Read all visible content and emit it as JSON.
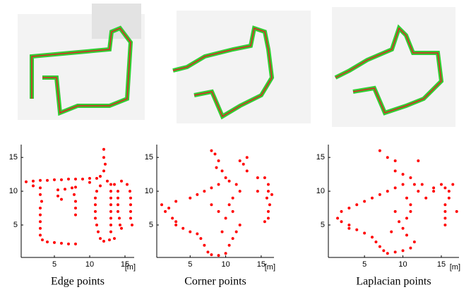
{
  "chart_data": [
    {
      "type": "scatter",
      "title": "Edge points",
      "xlabel": "[m]",
      "color": "#ff0000",
      "xlim": [
        0.3,
        16.3
      ],
      "ylim": [
        0.2,
        16.9
      ],
      "xticks": [
        5,
        10,
        15
      ],
      "yticks": [
        5,
        10,
        15
      ],
      "x": [
        12,
        12,
        12.2,
        12,
        11.5,
        11,
        10,
        9,
        8,
        7,
        6,
        5,
        4,
        3,
        2,
        1,
        2,
        3,
        3,
        3.2,
        3,
        3,
        3,
        3,
        3,
        3.3,
        4,
        5,
        6,
        7,
        8,
        5.5,
        6.5,
        7.5,
        8,
        7.8,
        8,
        8,
        8,
        5.5,
        6,
        11.5,
        11,
        10.8,
        10.8,
        10.8,
        10.8,
        11,
        11.2,
        11.5,
        12,
        12.8,
        13,
        13,
        13,
        13,
        13,
        13,
        13,
        13.5,
        14.5,
        15.3,
        15.7,
        15.8,
        15.8,
        15.8,
        15.8,
        16,
        14,
        14,
        14,
        14,
        14.2,
        14.3,
        14.5,
        13,
        12.5,
        13.5,
        10
      ],
      "values": [
        16.2,
        15,
        14,
        13,
        12.2,
        11.9,
        11.9,
        11.8,
        11.8,
        11.8,
        11.7,
        11.7,
        11.6,
        11.6,
        11.5,
        11.4,
        10.8,
        10.5,
        9.5,
        8.5,
        7.5,
        6.5,
        5.5,
        4.5,
        3.5,
        2.8,
        2.5,
        2.4,
        2.3,
        2.2,
        2.2,
        10.2,
        10.3,
        10.5,
        10.6,
        9.5,
        8.5,
        7.5,
        6.5,
        9.3,
        8.8,
        10.8,
        10,
        9,
        8,
        7,
        6,
        5,
        4,
        3,
        2.6,
        2.8,
        4,
        5,
        6,
        7,
        8,
        9,
        10,
        11,
        11.5,
        11,
        10,
        9,
        8,
        7,
        6,
        5,
        10,
        9,
        8,
        7,
        6,
        5,
        4.5,
        11,
        11.5,
        3,
        11.3
      ]
    },
    {
      "type": "scatter",
      "title": "Corner points",
      "xlabel": "[m]",
      "color": "#ff0000",
      "xlim": [
        0.3,
        16.8
      ],
      "ylim": [
        0.2,
        16.9
      ],
      "xticks": [
        5,
        10,
        15
      ],
      "yticks": [
        5,
        10,
        15
      ],
      "x": [
        8,
        8.5,
        9,
        8.7,
        9.5,
        10,
        10.5,
        9,
        8,
        7,
        6,
        5,
        3,
        2,
        1.5,
        2.5,
        3,
        4,
        5,
        6,
        6.5,
        7,
        7.5,
        8,
        9,
        10,
        10.5,
        11,
        11.5,
        12,
        11,
        10.5,
        11,
        12,
        11.5,
        10,
        9,
        8,
        12.5,
        13,
        15.5,
        16,
        16,
        15.8,
        16.2,
        16,
        16,
        15.5,
        16.5,
        14.5,
        14.5,
        12,
        1,
        3,
        9.5,
        13
      ],
      "values": [
        16,
        15.5,
        14.5,
        13.5,
        13,
        12,
        11.5,
        11,
        10.5,
        10,
        9.5,
        9,
        8.5,
        7.5,
        7,
        6,
        5.5,
        4.5,
        4,
        3.7,
        3,
        2,
        1,
        0.6,
        0.5,
        0.8,
        2,
        3,
        4,
        5,
        7,
        8,
        9,
        10,
        11,
        6,
        7,
        8,
        14,
        13,
        12,
        11,
        10,
        9,
        8,
        7,
        6,
        5.5,
        9.5,
        10,
        12,
        14.5,
        8,
        5,
        4,
        15
      ]
    },
    {
      "type": "scatter",
      "title": "Laplacian points",
      "xlabel": "[m]",
      "color": "#ff0000",
      "xlim": [
        0.3,
        17.3
      ],
      "ylim": [
        0.2,
        16.9
      ],
      "xticks": [
        5,
        10,
        15
      ],
      "yticks": [
        5,
        10,
        15
      ],
      "x": [
        7,
        8,
        9,
        9,
        10,
        11,
        11.5,
        10,
        9,
        8,
        7,
        6,
        5,
        4,
        3,
        2,
        1.5,
        2,
        3,
        4,
        5,
        6,
        6.5,
        7,
        7.5,
        8,
        9,
        10,
        11,
        11.5,
        10.5,
        10,
        9.5,
        10.5,
        11,
        11,
        10.5,
        12,
        12.5,
        14,
        15,
        15.5,
        16,
        16,
        15.5,
        15.5,
        15.5,
        15.5,
        16.5,
        17,
        14,
        13,
        8.5,
        9,
        3,
        12
      ],
      "values": [
        16,
        15,
        14.5,
        13,
        12.5,
        12,
        11,
        11,
        10.5,
        10,
        9.5,
        9,
        8.5,
        8,
        7.5,
        7,
        6,
        5.5,
        5,
        4.3,
        3.8,
        3.2,
        2.5,
        1.8,
        1.2,
        0.8,
        1,
        1.2,
        1.6,
        2.5,
        3.5,
        4.5,
        5.5,
        6,
        7,
        8,
        9,
        10,
        11,
        10.5,
        11,
        10.5,
        10,
        9,
        8,
        7,
        6,
        5,
        11,
        7,
        10,
        9,
        4,
        7,
        4.5,
        14.5
      ]
    }
  ]
}
